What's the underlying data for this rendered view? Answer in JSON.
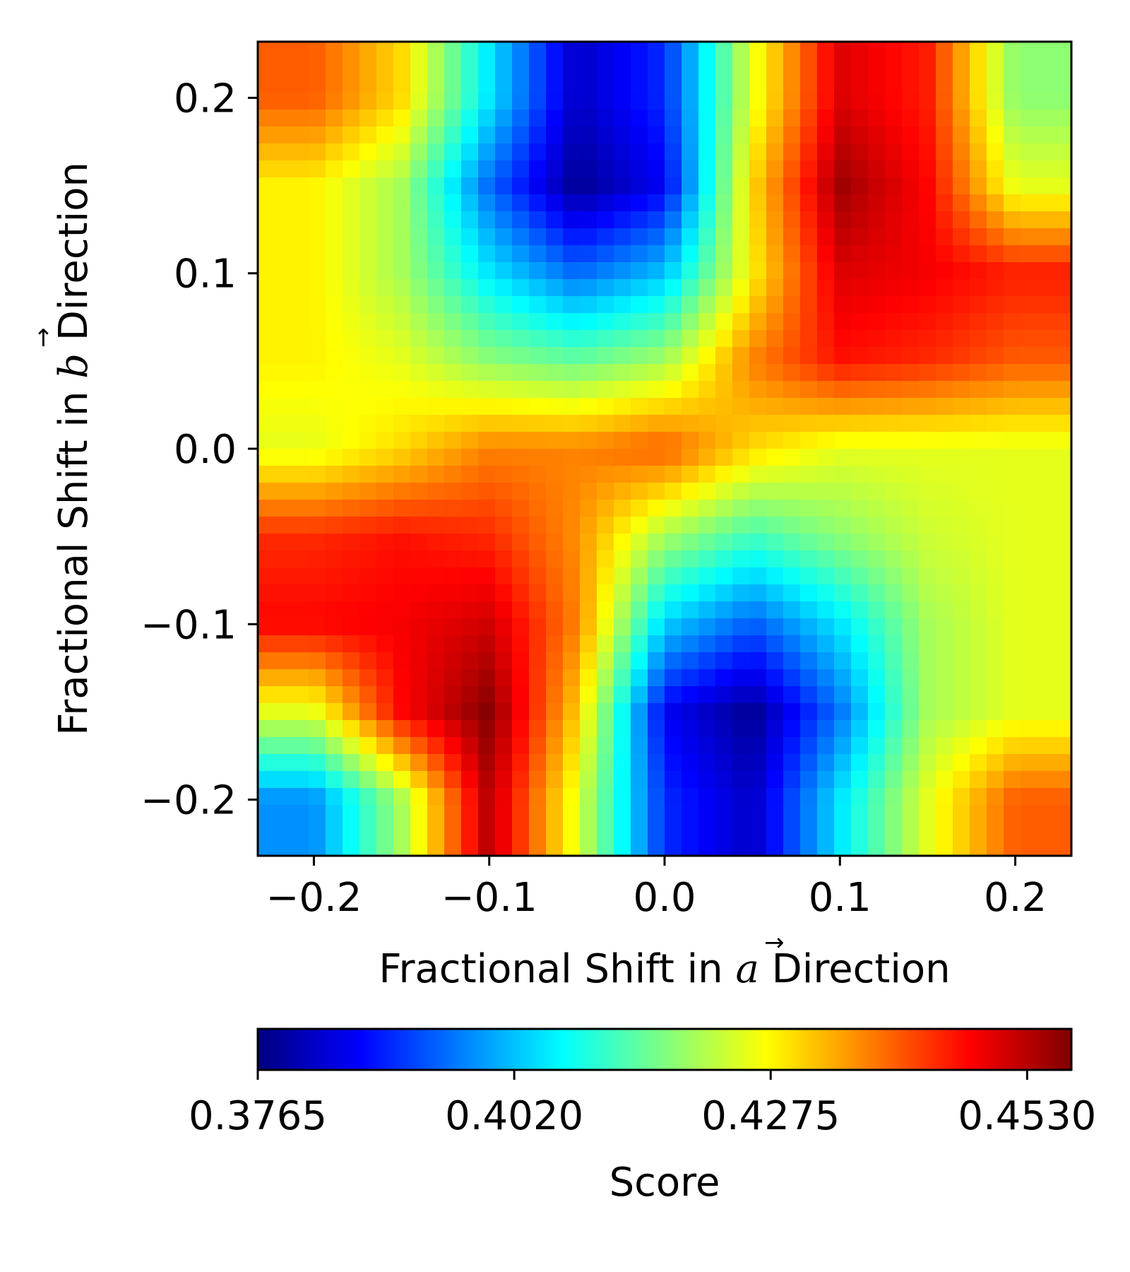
{
  "chart_data": {
    "type": "heatmap",
    "title": "",
    "xlabel": {
      "prefix": "Fractional Shift in ",
      "vector": "a",
      "suffix": " Direction"
    },
    "ylabel": {
      "prefix": "Fractional Shift in ",
      "vector": "b",
      "suffix": " Direction"
    },
    "xlim": [
      -0.232,
      0.232
    ],
    "ylim": [
      -0.232,
      0.232
    ],
    "xticks": [
      -0.2,
      -0.1,
      0.0,
      0.1,
      0.2
    ],
    "yticks": [
      -0.2,
      -0.1,
      0.0,
      0.1,
      0.2
    ],
    "xtick_labels": [
      "−0.2",
      "−0.1",
      "0.0",
      "0.1",
      "0.2"
    ],
    "ytick_labels": [
      "−0.2",
      "−0.1",
      "0.0",
      "0.1",
      "0.2"
    ],
    "colormap": "jet",
    "colorbar": {
      "label": "Score",
      "orientation": "horizontal",
      "min": 0.3765,
      "max": 0.4574,
      "ticks": [
        0.3765,
        0.402,
        0.4275,
        0.453
      ],
      "tick_labels": [
        "0.3765",
        "0.4020",
        "0.4275",
        "0.4530"
      ]
    },
    "grid_x": [
      -0.2,
      -0.15,
      -0.1,
      -0.05,
      0.0,
      0.05,
      0.1,
      0.15,
      0.2
    ],
    "grid_y": [
      0.2,
      0.15,
      0.1,
      0.05,
      0.0,
      -0.05,
      -0.1,
      -0.15,
      -0.2
    ],
    "grid_values": [
      [
        0.44,
        0.43,
        0.405,
        0.382,
        0.39,
        0.425,
        0.45,
        0.445,
        0.418
      ],
      [
        0.428,
        0.42,
        0.395,
        0.378,
        0.386,
        0.43,
        0.455,
        0.447,
        0.425
      ],
      [
        0.428,
        0.42,
        0.405,
        0.395,
        0.402,
        0.428,
        0.45,
        0.448,
        0.445
      ],
      [
        0.428,
        0.425,
        0.418,
        0.415,
        0.42,
        0.437,
        0.446,
        0.444,
        0.44
      ],
      [
        0.425,
        0.43,
        0.437,
        0.437,
        0.44,
        0.43,
        0.425,
        0.425,
        0.425
      ],
      [
        0.444,
        0.446,
        0.444,
        0.436,
        0.42,
        0.412,
        0.418,
        0.423,
        0.425
      ],
      [
        0.447,
        0.448,
        0.451,
        0.437,
        0.403,
        0.394,
        0.405,
        0.42,
        0.425
      ],
      [
        0.425,
        0.447,
        0.457,
        0.431,
        0.386,
        0.378,
        0.396,
        0.42,
        0.425
      ],
      [
        0.398,
        0.42,
        0.453,
        0.425,
        0.39,
        0.382,
        0.405,
        0.425,
        0.44
      ]
    ]
  }
}
